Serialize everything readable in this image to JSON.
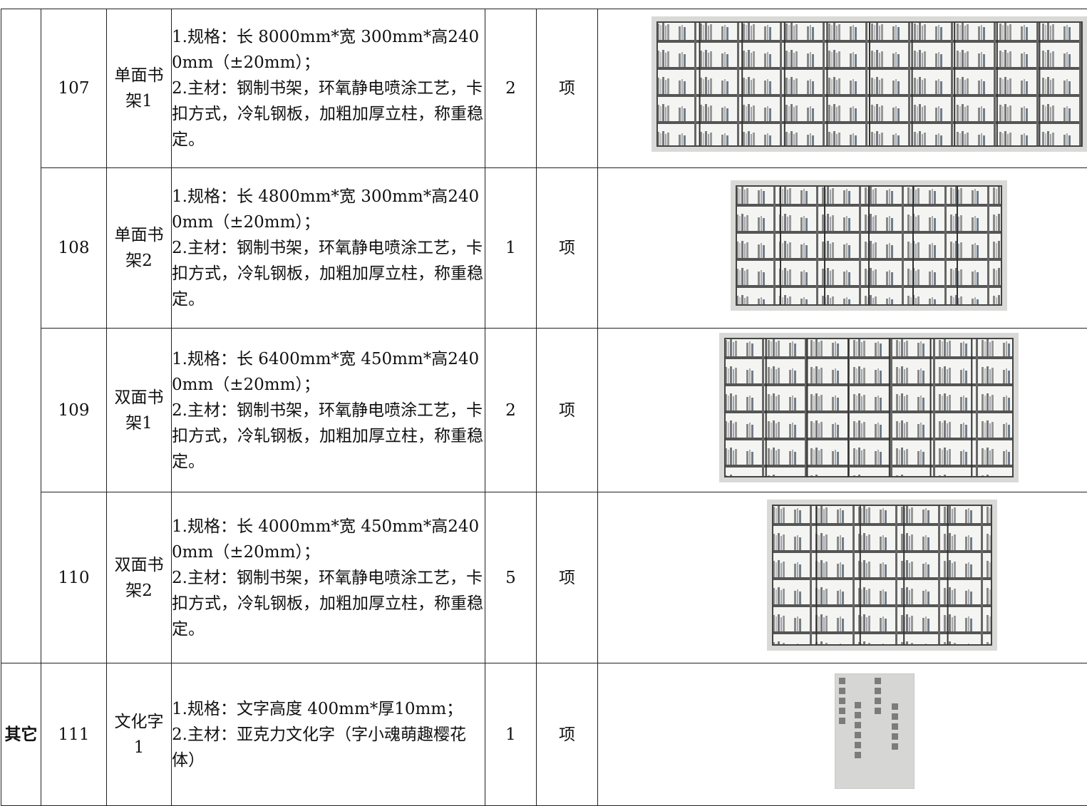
{
  "table": {
    "groups": [
      {
        "rows": [
          {
            "number": "107",
            "name": "单面书架1",
            "description": [
              "1.规格：长 8000mm*宽 300mm*高2400mm（±20mm）；",
              "2.主材：钢制书架，环氧静电喷涂工艺，卡扣方式，冷轧钢板，加粗加厚立柱，称重稳定。"
            ],
            "quantity": "2",
            "unit": "项"
          },
          {
            "number": "108",
            "name": "单面书架2",
            "description": [
              "1.规格：长 4800mm*宽 300mm*高2400mm（±20mm）；",
              "2.主材：钢制书架，环氧静电喷涂工艺，卡扣方式，冷轧钢板，加粗加厚立柱，称重稳定。"
            ],
            "quantity": "1",
            "unit": "项"
          },
          {
            "number": "109",
            "name": "双面书架1",
            "description": [
              "1.规格：长 6400mm*宽 450mm*高2400mm（±20mm）；",
              "2.主材：钢制书架，环氧静电喷涂工艺，卡扣方式，冷轧钢板，加粗加厚立柱，称重稳定。"
            ],
            "quantity": "2",
            "unit": "项"
          },
          {
            "number": "110",
            "name": "双面书架2",
            "description": [
              "1.规格：长 4000mm*宽 450mm*高2400mm（±20mm）；",
              "2.主材：钢制书架，环氧静电喷涂工艺，卡扣方式，冷轧钢板，加粗加厚立柱，称重稳定。"
            ],
            "quantity": "5",
            "unit": "项"
          }
        ]
      },
      {
        "category": "其它",
        "rows": [
          {
            "number": "111",
            "name": "文化字 1",
            "description": [
              "1.规格：文字高度 400mm*厚10mm；",
              "2.主材：亚克力文化字（字小魂萌趣樱花体）"
            ],
            "quantity": "1",
            "unit": "项"
          }
        ]
      }
    ]
  }
}
